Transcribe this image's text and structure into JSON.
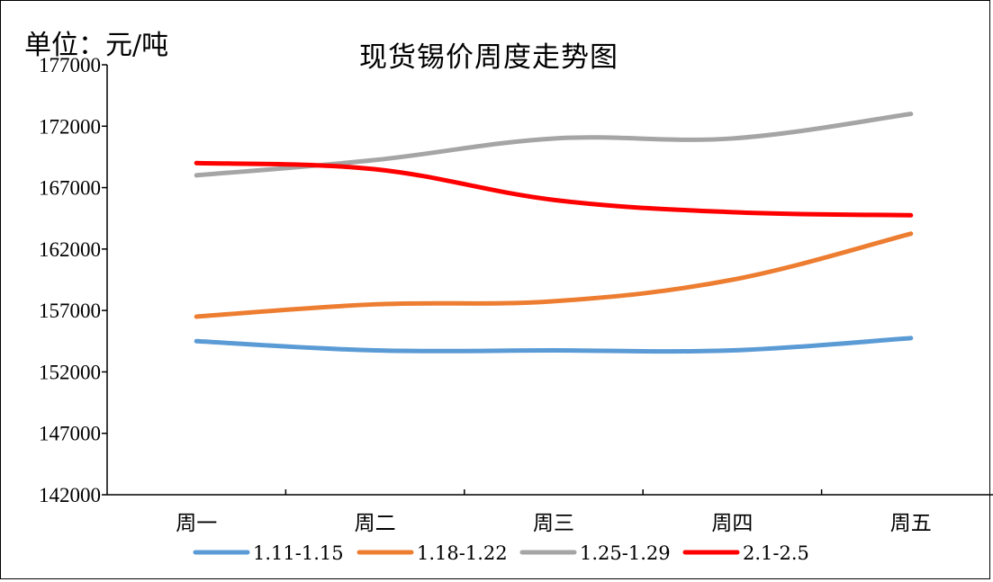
{
  "chart_data": {
    "type": "line",
    "title": "现货锡价周度走势图",
    "unit_label": "单位：元/吨",
    "categories": [
      "周一",
      "周二",
      "周三",
      "周四",
      "周五"
    ],
    "ylim": [
      142000,
      177000
    ],
    "yticks": [
      142000,
      147000,
      152000,
      157000,
      162000,
      167000,
      172000,
      177000
    ],
    "grid": false,
    "legend_position": "bottom",
    "series": [
      {
        "name": "1.11-1.15",
        "color": "#5b9bd5",
        "values": [
          154500,
          153750,
          153750,
          153750,
          154750
        ]
      },
      {
        "name": "1.18-1.22",
        "color": "#ed7d31",
        "values": [
          156500,
          157500,
          157750,
          159500,
          163250
        ]
      },
      {
        "name": "1.25-1.29",
        "color": "#a5a5a5",
        "values": [
          168000,
          169250,
          171000,
          171000,
          173000
        ]
      },
      {
        "name": "2.1-2.5",
        "color": "#ff0000",
        "values": [
          169000,
          168500,
          166000,
          165000,
          164750
        ]
      }
    ]
  }
}
